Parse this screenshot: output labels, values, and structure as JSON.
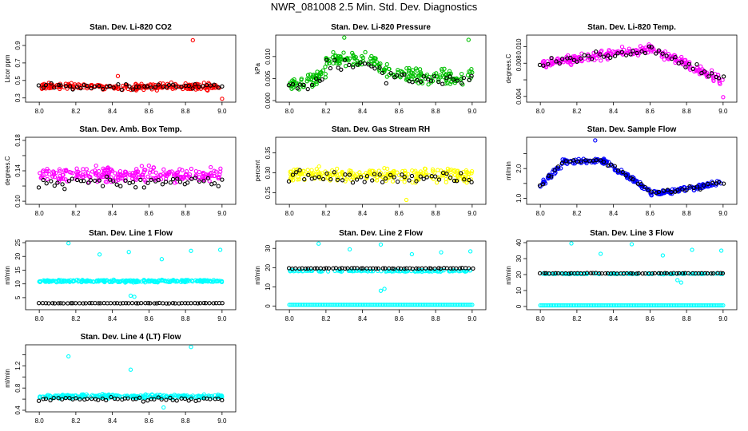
{
  "main_title": "NWR_081008 2.5 Min. Std. Dev. Diagnostics",
  "chart_data": [
    {
      "type": "scatter",
      "title": "Stan. Dev. Li-820 CO2",
      "ylabel": "Licor ppm",
      "xlim": [
        7.96,
        9.04
      ],
      "ylim": [
        0.27,
        1.0
      ],
      "xticks": [
        8.0,
        8.2,
        8.4,
        8.6,
        8.8,
        9.0
      ],
      "yticks": [
        0.3,
        0.5,
        0.7,
        0.9
      ],
      "ytick_labels": [
        "0.3",
        "0.5",
        "0.7",
        "0.9"
      ],
      "color": "#ff0000",
      "mean": 0.43,
      "spread": 0.05,
      "n": 240,
      "trend": "flat",
      "outliers": [
        [
          8.84,
          0.96
        ],
        [
          9.0,
          0.29
        ],
        [
          8.43,
          0.55
        ]
      ],
      "black_series": {
        "mean": 0.43,
        "spread": 0.05,
        "n": 50
      }
    },
    {
      "type": "scatter",
      "title": "Stan. Dev. Li-820 Pressure",
      "ylabel": "kPa",
      "xlim": [
        7.96,
        9.04
      ],
      "ylim": [
        0.0,
        0.0145
      ],
      "xticks": [
        8.0,
        8.2,
        8.4,
        8.6,
        8.8,
        9.0
      ],
      "yticks": [
        0.0,
        0.005,
        0.01
      ],
      "ytick_labels": [
        "0.000",
        "0.005",
        "0.010"
      ],
      "color": "#00c000",
      "mean": 0.006,
      "spread": 0.0025,
      "n": 240,
      "trend": "hump",
      "outliers": [
        [
          8.3,
          0.0143
        ],
        [
          8.98,
          0.0138
        ]
      ],
      "black_series": {
        "mean": 0.005,
        "spread": 0.002,
        "n": 50
      }
    },
    {
      "type": "scatter",
      "title": "Stan. Dev. Li-820 Temp.",
      "ylabel": "degrees.C",
      "xlim": [
        7.96,
        9.04
      ],
      "ylim": [
        0.0035,
        0.0112
      ],
      "xticks": [
        8.0,
        8.2,
        8.4,
        8.6,
        8.8,
        9.0
      ],
      "yticks": [
        0.004,
        0.006,
        0.008,
        0.01
      ],
      "ytick_labels": [
        "0.004",
        "",
        "0.008",
        "0.010"
      ],
      "color": "#ff00ff",
      "mean": 0.0085,
      "spread": 0.0008,
      "n": 240,
      "trend": "rise",
      "outliers": [
        [
          9.0,
          0.0039
        ]
      ],
      "black_series": {
        "mean": 0.0085,
        "spread": 0.0007,
        "n": 50
      }
    },
    {
      "type": "scatter",
      "title": "Stan. Dev. Amb. Box Temp.",
      "ylabel": "degrees.C",
      "xlim": [
        7.96,
        9.04
      ],
      "ylim": [
        0.098,
        0.182
      ],
      "xticks": [
        8.0,
        8.2,
        8.4,
        8.6,
        8.8,
        9.0
      ],
      "yticks": [
        0.1,
        0.12,
        0.14,
        0.16,
        0.18
      ],
      "ytick_labels": [
        "0.10",
        "",
        "0.14",
        "",
        "0.18"
      ],
      "color": "#ff00ff",
      "mean": 0.135,
      "spread": 0.015,
      "n": 240,
      "trend": "flat",
      "outliers": [],
      "black_series": {
        "mean": 0.125,
        "spread": 0.01,
        "n": 50
      }
    },
    {
      "type": "scatter",
      "title": "Stan. Dev. Gas Stream RH",
      "ylabel": "percent",
      "xlim": [
        7.96,
        9.04
      ],
      "ylim": [
        0.225,
        0.385
      ],
      "xticks": [
        8.0,
        8.2,
        8.4,
        8.6,
        8.8,
        9.0
      ],
      "yticks": [
        0.25,
        0.3,
        0.35
      ],
      "ytick_labels": [
        "0.25",
        "0.30",
        "0.35"
      ],
      "color": "#ffff00",
      "mean": 0.295,
      "spread": 0.025,
      "n": 240,
      "trend": "flat",
      "outliers": [
        [
          8.64,
          0.232
        ]
      ],
      "black_series": {
        "mean": 0.29,
        "spread": 0.02,
        "n": 50
      }
    },
    {
      "type": "scatter",
      "title": "Stan. Dev. Sample Flow",
      "ylabel": "ml/min",
      "xlim": [
        7.96,
        9.04
      ],
      "ylim": [
        0.85,
        3.0
      ],
      "xticks": [
        8.0,
        8.2,
        8.4,
        8.6,
        8.8,
        9.0
      ],
      "yticks": [
        1.0,
        1.5,
        2.0,
        2.5
      ],
      "ytick_labels": [
        "1.0",
        "",
        "2.0",
        ""
      ],
      "color": "#0000ff",
      "mean": 1.5,
      "spread": 0.12,
      "n": 240,
      "trend": "flowhump",
      "outliers": [
        [
          8.3,
          2.95
        ]
      ],
      "black_series": {
        "mean": 1.5,
        "spread": 0.1,
        "n": 50
      }
    },
    {
      "type": "scatter",
      "title": "Stan. Dev. Line 1 Flow",
      "ylabel": "ml/min",
      "xlim": [
        7.96,
        9.04
      ],
      "ylim": [
        1.2,
        25.0
      ],
      "xticks": [
        8.0,
        8.2,
        8.4,
        8.6,
        8.8,
        9.0
      ],
      "yticks": [
        5,
        10,
        15,
        20,
        25
      ],
      "ytick_labels": [
        "5",
        "10",
        "15",
        "20",
        "25"
      ],
      "color": "#00ffff",
      "mean": 11.0,
      "spread": 0.6,
      "n": 240,
      "trend": "flat",
      "outliers": [
        [
          8.16,
          24.8
        ],
        [
          8.33,
          20.7
        ],
        [
          8.49,
          21.6
        ],
        [
          8.67,
          19.0
        ],
        [
          8.83,
          22.0
        ],
        [
          8.99,
          22.4
        ],
        [
          8.52,
          5.3
        ],
        [
          8.5,
          5.7
        ]
      ],
      "black_series": {
        "mean": 3.0,
        "spread": 0.12,
        "n": 60
      }
    },
    {
      "type": "scatter",
      "title": "Stan. Dev. Line 2 Flow",
      "ylabel": "ml/min",
      "xlim": [
        7.96,
        9.04
      ],
      "ylim": [
        -1.0,
        33.0
      ],
      "xticks": [
        8.0,
        8.2,
        8.4,
        8.6,
        8.8,
        9.0
      ],
      "yticks": [
        0,
        10,
        20,
        30
      ],
      "ytick_labels": [
        "0",
        "10",
        "20",
        "30"
      ],
      "color": "#00ffff",
      "mean": 18.3,
      "spread": 0.6,
      "n": 120,
      "trend": "flat",
      "outliers": [
        [
          8.16,
          32.5
        ],
        [
          8.33,
          29.5
        ],
        [
          8.5,
          32.0
        ],
        [
          8.67,
          27.0
        ],
        [
          8.83,
          28.0
        ],
        [
          8.99,
          28.5
        ],
        [
          8.52,
          9.0
        ],
        [
          8.5,
          8.0
        ]
      ],
      "black_series": {
        "mean": 19.6,
        "spread": 0.3,
        "n": 60
      },
      "baseline_series": {
        "value": 0.7,
        "n": 120
      }
    },
    {
      "type": "scatter",
      "title": "Stan. Dev. Line 3 Flow",
      "ylabel": "ml/min",
      "xlim": [
        7.96,
        9.04
      ],
      "ylim": [
        -1.0,
        40.0
      ],
      "xticks": [
        8.0,
        8.2,
        8.4,
        8.6,
        8.8,
        9.0
      ],
      "yticks": [
        0,
        10,
        20,
        30,
        40
      ],
      "ytick_labels": [
        "0",
        "10",
        "20",
        "30",
        "40"
      ],
      "color": "#00ffff",
      "mean": 20.5,
      "spread": 0.4,
      "n": 100,
      "trend": "flat",
      "outliers": [
        [
          8.17,
          39.5
        ],
        [
          8.33,
          33.0
        ],
        [
          8.5,
          39.0
        ],
        [
          8.67,
          32.0
        ],
        [
          8.83,
          35.5
        ],
        [
          8.99,
          35.0
        ],
        [
          8.75,
          16.5
        ],
        [
          8.77,
          15.0
        ]
      ],
      "black_series": {
        "mean": 20.8,
        "spread": 0.3,
        "n": 60
      },
      "baseline_series": {
        "value": 0.7,
        "n": 120
      }
    },
    {
      "type": "scatter",
      "title": "Stan. Dev. Line 4 (LT) Flow",
      "ylabel": "ml/min",
      "xlim": [
        7.96,
        9.04
      ],
      "ylim": [
        0.4,
        1.55
      ],
      "xticks": [
        8.0,
        8.2,
        8.4,
        8.6,
        8.8,
        9.0
      ],
      "yticks": [
        0.4,
        0.6,
        0.8,
        1.0,
        1.2,
        1.4
      ],
      "ytick_labels": [
        "0.4",
        "",
        "0.8",
        "",
        "1.2",
        ""
      ],
      "color": "#00ffff",
      "mean": 0.65,
      "spread": 0.05,
      "n": 240,
      "trend": "flat",
      "outliers": [
        [
          8.16,
          1.37
        ],
        [
          8.5,
          1.13
        ],
        [
          8.83,
          1.54
        ],
        [
          8.68,
          0.45
        ]
      ],
      "black_series": {
        "mean": 0.6,
        "spread": 0.05,
        "n": 50
      }
    }
  ]
}
